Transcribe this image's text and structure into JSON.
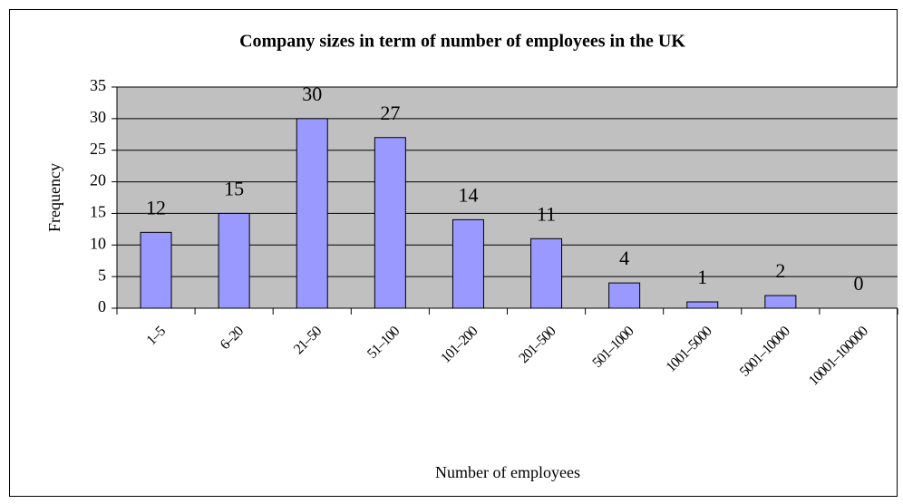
{
  "chart_data": {
    "type": "bar",
    "title": "Company sizes in term of number of employees in the UK",
    "x_label": "Number of employees",
    "y_label": "Frequency",
    "categories": [
      "1–5",
      "6–20",
      "21–50",
      "51–100",
      "101–200",
      "201–500",
      "501–1000",
      "1001–5000",
      "5001–10000",
      "10001–100000"
    ],
    "values": [
      12,
      15,
      30,
      27,
      14,
      11,
      4,
      1,
      2,
      0
    ],
    "color": "#9999ff",
    "ylim": [
      0,
      35
    ],
    "yticks": [
      0,
      5,
      10,
      15,
      20,
      25,
      30,
      35
    ],
    "grid": true
  }
}
